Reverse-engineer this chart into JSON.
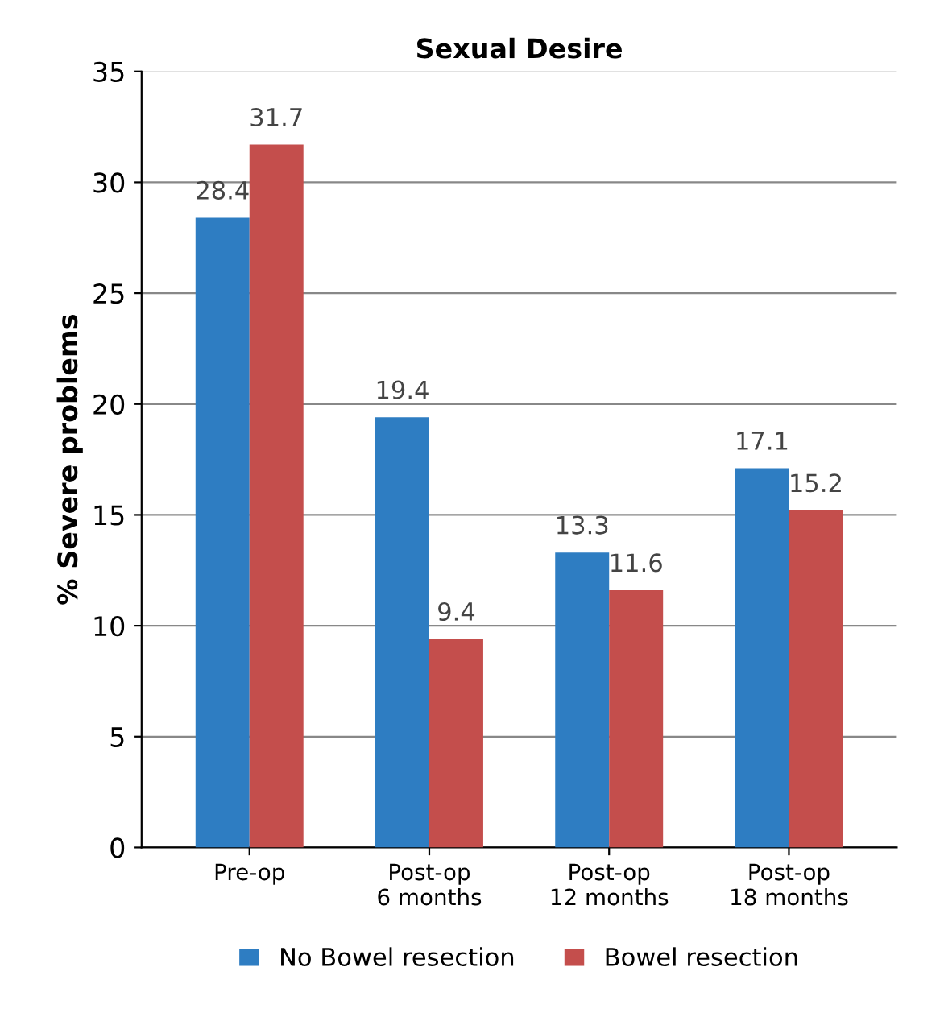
{
  "chart_data": {
    "type": "bar",
    "title": "Sexual Desire",
    "ylabel": "% Severe problems",
    "categories": [
      "Pre-op",
      "Post-op\n6 months",
      "Post-op\n12 months",
      "Post-op\n18 months"
    ],
    "series": [
      {
        "name": "No Bowel resection",
        "color": "#2e7dc2",
        "values": [
          28.4,
          19.4,
          13.3,
          17.1
        ]
      },
      {
        "name": "Bowel resection",
        "color": "#c44e4c",
        "values": [
          31.7,
          9.4,
          11.6,
          15.2
        ]
      }
    ],
    "ylim": [
      0,
      35
    ],
    "yticks": [
      0,
      5,
      10,
      15,
      20,
      25,
      30,
      35
    ],
    "grid": "y",
    "legend": "bottom",
    "data_labels": true
  }
}
